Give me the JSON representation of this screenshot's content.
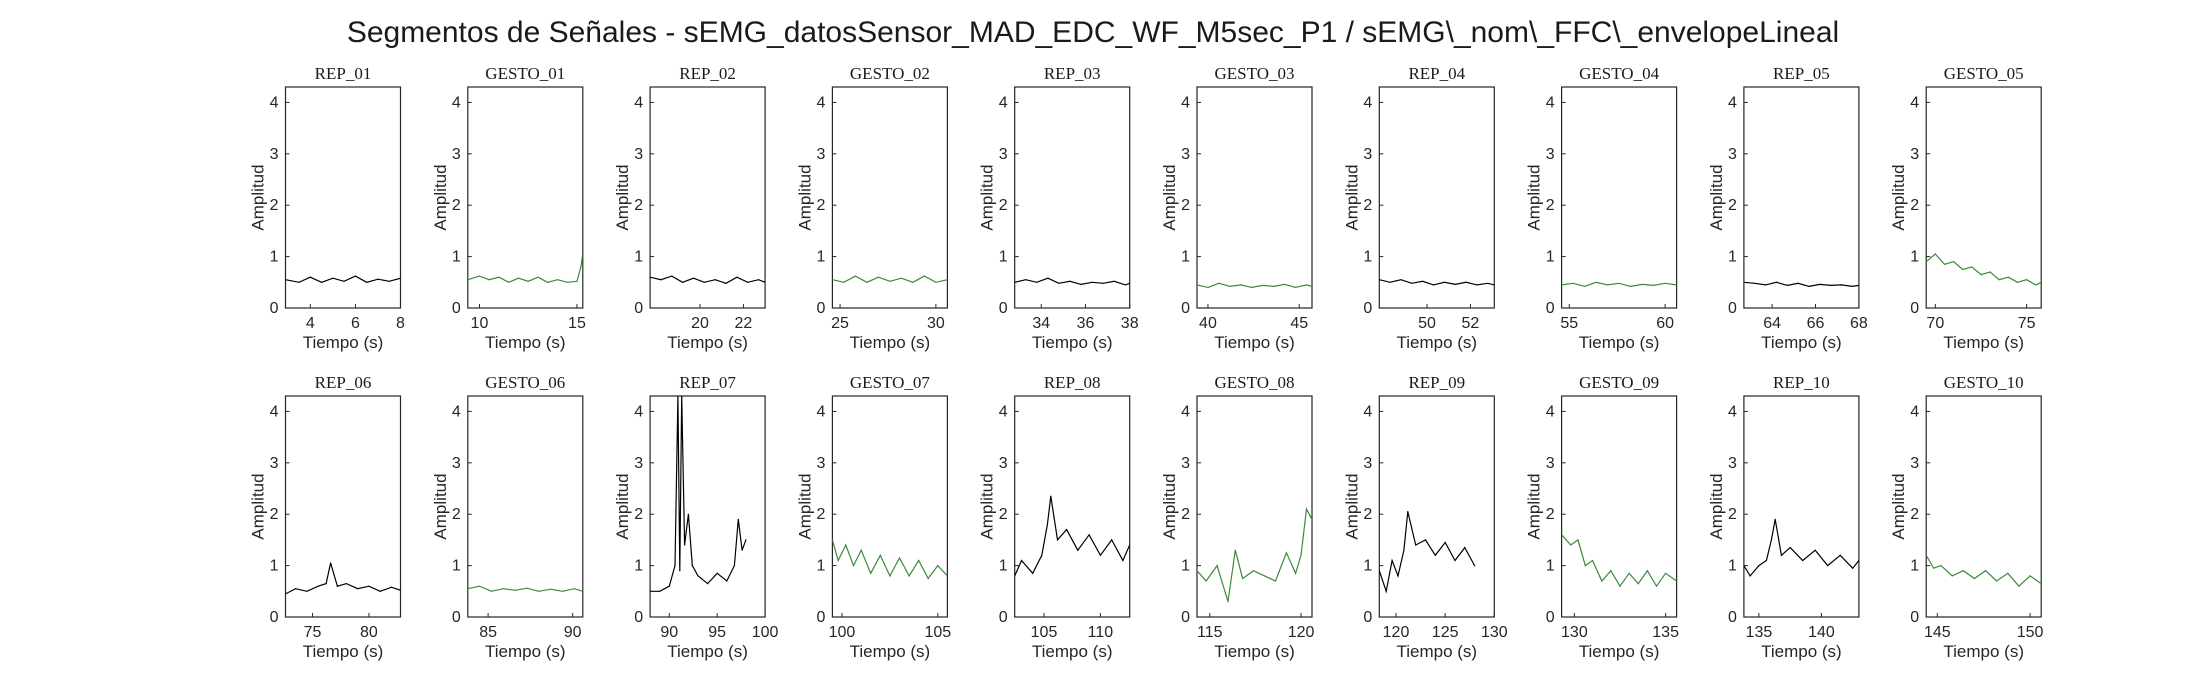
{
  "figure": {
    "title": "Segmentos de Señales - sEMG_datosSensor_MAD_EDC_WF_M5sec_P1 / sEMG\\_nom\\_FFC\\_envelopeLineal"
  },
  "colors": {
    "rep": "#000000",
    "gesto": "#3a8a3a"
  },
  "chart_data": [
    {
      "type": "line",
      "title": "REP_01",
      "xlabel": "Tiempo (s)",
      "ylabel": "Amplitud",
      "xlim": [
        2.9,
        8
      ],
      "ylim": [
        0,
        4.3
      ],
      "xticks": [
        4,
        6,
        8
      ],
      "yticks": [
        0,
        1,
        2,
        3,
        4
      ],
      "color": "rep",
      "x": [
        2.9,
        3.5,
        4.0,
        4.5,
        5.0,
        5.5,
        6.0,
        6.5,
        7.0,
        7.5,
        8.0
      ],
      "y": [
        0.55,
        0.5,
        0.6,
        0.5,
        0.58,
        0.52,
        0.62,
        0.5,
        0.56,
        0.52,
        0.58
      ]
    },
    {
      "type": "line",
      "title": "GESTO_01",
      "xlabel": "Tiempo (s)",
      "ylabel": "Amplitud",
      "xlim": [
        9.4,
        15.3
      ],
      "ylim": [
        0,
        4.3
      ],
      "xticks": [
        10,
        15
      ],
      "yticks": [
        0,
        1,
        2,
        3,
        4
      ],
      "color": "gesto",
      "x": [
        9.4,
        10,
        10.5,
        11,
        11.5,
        12,
        12.5,
        13,
        13.5,
        14,
        14.5,
        15,
        15.2,
        15.3
      ],
      "y": [
        0.55,
        0.62,
        0.55,
        0.6,
        0.5,
        0.58,
        0.52,
        0.6,
        0.5,
        0.55,
        0.5,
        0.52,
        0.8,
        1.05
      ]
    },
    {
      "type": "line",
      "title": "REP_02",
      "xlabel": "Tiempo (s)",
      "ylabel": "Amplitud",
      "xlim": [
        17.7,
        23
      ],
      "ylim": [
        0,
        4.3
      ],
      "xticks": [
        20,
        22
      ],
      "yticks": [
        0,
        1,
        2,
        3,
        4
      ],
      "color": "rep",
      "x": [
        17.7,
        18.2,
        18.7,
        19.2,
        19.7,
        20.2,
        20.7,
        21.2,
        21.7,
        22.2,
        22.7,
        23
      ],
      "y": [
        0.6,
        0.55,
        0.62,
        0.5,
        0.58,
        0.5,
        0.55,
        0.48,
        0.6,
        0.5,
        0.55,
        0.5
      ]
    },
    {
      "type": "line",
      "title": "GESTO_02",
      "xlabel": "Tiempo (s)",
      "ylabel": "Amplitud",
      "xlim": [
        24.6,
        30.6
      ],
      "ylim": [
        0,
        4.3
      ],
      "xticks": [
        25,
        30
      ],
      "yticks": [
        0,
        1,
        2,
        3,
        4
      ],
      "color": "gesto",
      "x": [
        24.6,
        25.2,
        25.8,
        26.4,
        27,
        27.6,
        28.2,
        28.8,
        29.4,
        30,
        30.6
      ],
      "y": [
        0.55,
        0.5,
        0.62,
        0.5,
        0.6,
        0.52,
        0.58,
        0.5,
        0.62,
        0.5,
        0.55
      ]
    },
    {
      "type": "line",
      "title": "REP_03",
      "xlabel": "Tiempo (s)",
      "ylabel": "Amplitud",
      "xlim": [
        32.8,
        38
      ],
      "ylim": [
        0,
        4.3
      ],
      "xticks": [
        34,
        36,
        38
      ],
      "yticks": [
        0,
        1,
        2,
        3,
        4
      ],
      "color": "rep",
      "x": [
        32.8,
        33.3,
        33.8,
        34.3,
        34.8,
        35.3,
        35.8,
        36.3,
        36.8,
        37.3,
        37.8,
        38
      ],
      "y": [
        0.5,
        0.55,
        0.5,
        0.58,
        0.48,
        0.52,
        0.46,
        0.5,
        0.48,
        0.52,
        0.45,
        0.48
      ]
    },
    {
      "type": "line",
      "title": "GESTO_03",
      "xlabel": "Tiempo (s)",
      "ylabel": "Amplitud",
      "xlim": [
        39.4,
        45.7
      ],
      "ylim": [
        0,
        4.3
      ],
      "xticks": [
        40,
        45
      ],
      "yticks": [
        0,
        1,
        2,
        3,
        4
      ],
      "color": "gesto",
      "x": [
        39.4,
        40,
        40.6,
        41.2,
        41.8,
        42.4,
        43,
        43.6,
        44.2,
        44.8,
        45.4,
        45.7
      ],
      "y": [
        0.45,
        0.4,
        0.48,
        0.42,
        0.45,
        0.4,
        0.44,
        0.42,
        0.46,
        0.4,
        0.45,
        0.42
      ]
    },
    {
      "type": "line",
      "title": "REP_04",
      "xlabel": "Tiempo (s)",
      "ylabel": "Amplitud",
      "xlim": [
        47.8,
        53.1
      ],
      "ylim": [
        0,
        4.3
      ],
      "xticks": [
        50,
        52
      ],
      "yticks": [
        0,
        1,
        2,
        3,
        4
      ],
      "color": "rep",
      "x": [
        47.8,
        48.3,
        48.8,
        49.3,
        49.8,
        50.3,
        50.8,
        51.3,
        51.8,
        52.3,
        52.8,
        53.1
      ],
      "y": [
        0.55,
        0.5,
        0.55,
        0.48,
        0.52,
        0.45,
        0.5,
        0.46,
        0.5,
        0.45,
        0.48,
        0.45
      ]
    },
    {
      "type": "line",
      "title": "GESTO_04",
      "xlabel": "Tiempo (s)",
      "ylabel": "Amplitud",
      "xlim": [
        54.6,
        60.6
      ],
      "ylim": [
        0,
        4.3
      ],
      "xticks": [
        55,
        60
      ],
      "yticks": [
        0,
        1,
        2,
        3,
        4
      ],
      "color": "gesto",
      "x": [
        54.6,
        55.2,
        55.8,
        56.4,
        57,
        57.6,
        58.2,
        58.8,
        59.4,
        60,
        60.6
      ],
      "y": [
        0.45,
        0.48,
        0.42,
        0.5,
        0.45,
        0.48,
        0.42,
        0.46,
        0.44,
        0.48,
        0.45
      ]
    },
    {
      "type": "line",
      "title": "REP_05",
      "xlabel": "Tiempo (s)",
      "ylabel": "Amplitud",
      "xlim": [
        62.7,
        68
      ],
      "ylim": [
        0,
        4.3
      ],
      "xticks": [
        64,
        66,
        68
      ],
      "yticks": [
        0,
        1,
        2,
        3,
        4
      ],
      "color": "rep",
      "x": [
        62.7,
        63.2,
        63.7,
        64.2,
        64.7,
        65.2,
        65.7,
        66.2,
        66.7,
        67.2,
        67.7,
        68
      ],
      "y": [
        0.5,
        0.48,
        0.45,
        0.5,
        0.44,
        0.48,
        0.42,
        0.46,
        0.44,
        0.45,
        0.42,
        0.44
      ]
    },
    {
      "type": "line",
      "title": "GESTO_05",
      "xlabel": "Tiempo (s)",
      "ylabel": "Amplitud",
      "xlim": [
        69.5,
        75.8
      ],
      "ylim": [
        0,
        4.3
      ],
      "xticks": [
        70,
        75
      ],
      "yticks": [
        0,
        1,
        2,
        3,
        4
      ],
      "color": "gesto",
      "x": [
        69.5,
        70,
        70.5,
        71,
        71.5,
        72,
        72.5,
        73,
        73.5,
        74,
        74.5,
        75,
        75.5,
        75.8
      ],
      "y": [
        0.9,
        1.05,
        0.85,
        0.9,
        0.75,
        0.8,
        0.65,
        0.7,
        0.55,
        0.6,
        0.5,
        0.55,
        0.45,
        0.5
      ]
    },
    {
      "type": "line",
      "title": "REP_06",
      "xlabel": "Tiempo (s)",
      "ylabel": "Amplitud",
      "xlim": [
        72.6,
        82.8
      ],
      "ylim": [
        0,
        4.3
      ],
      "xticks": [
        75,
        80
      ],
      "yticks": [
        0,
        1,
        2,
        3,
        4
      ],
      "color": "rep",
      "x": [
        72.6,
        73.5,
        74.5,
        75.5,
        76.2,
        76.6,
        77.2,
        78,
        79,
        80,
        81,
        82,
        82.8
      ],
      "y": [
        0.45,
        0.55,
        0.5,
        0.6,
        0.65,
        1.05,
        0.6,
        0.65,
        0.55,
        0.6,
        0.5,
        0.58,
        0.52
      ]
    },
    {
      "type": "line",
      "title": "GESTO_06",
      "xlabel": "Tiempo (s)",
      "ylabel": "Amplitud",
      "xlim": [
        83.8,
        90.6
      ],
      "ylim": [
        0,
        4.3
      ],
      "xticks": [
        85,
        90
      ],
      "yticks": [
        0,
        1,
        2,
        3,
        4
      ],
      "color": "gesto",
      "x": [
        83.8,
        84.5,
        85.2,
        85.9,
        86.6,
        87.3,
        88,
        88.7,
        89.4,
        90.1,
        90.6
      ],
      "y": [
        0.55,
        0.6,
        0.5,
        0.55,
        0.52,
        0.56,
        0.5,
        0.54,
        0.5,
        0.55,
        0.5
      ]
    },
    {
      "type": "line",
      "title": "REP_07",
      "xlabel": "Tiempo (s)",
      "ylabel": "Amplitud",
      "xlim": [
        88,
        100
      ],
      "ylim": [
        0,
        4.3
      ],
      "xticks": [
        90,
        95,
        100
      ],
      "yticks": [
        0,
        1,
        2,
        3,
        4
      ],
      "color": "rep",
      "x": [
        88,
        89,
        90,
        90.6,
        90.9,
        91.1,
        91.3,
        91.6,
        92,
        92.4,
        93,
        94,
        95,
        96,
        96.8,
        97.2,
        97.6,
        98
      ],
      "y": [
        0.5,
        0.5,
        0.6,
        1.0,
        4.3,
        0.9,
        4.3,
        1.4,
        2.0,
        1.0,
        0.8,
        0.65,
        0.85,
        0.7,
        1.0,
        1.9,
        1.3,
        1.5
      ]
    },
    {
      "type": "line",
      "title": "GESTO_07",
      "xlabel": "Tiempo (s)",
      "ylabel": "Amplitud",
      "xlim": [
        99.5,
        105.5
      ],
      "ylim": [
        0,
        4.3
      ],
      "xticks": [
        100,
        105
      ],
      "yticks": [
        0,
        1,
        2,
        3,
        4
      ],
      "color": "gesto",
      "x": [
        99.5,
        99.8,
        100.2,
        100.6,
        101,
        101.5,
        102,
        102.5,
        103,
        103.5,
        104,
        104.5,
        105,
        105.5
      ],
      "y": [
        1.5,
        1.1,
        1.4,
        1.0,
        1.3,
        0.85,
        1.2,
        0.8,
        1.15,
        0.8,
        1.1,
        0.75,
        1.0,
        0.8
      ]
    },
    {
      "type": "line",
      "title": "REP_08",
      "xlabel": "Tiempo (s)",
      "ylabel": "Amplitud",
      "xlim": [
        102.4,
        112.6
      ],
      "ylim": [
        0,
        4.3
      ],
      "xticks": [
        105,
        110
      ],
      "yticks": [
        0,
        1,
        2,
        3,
        4
      ],
      "color": "rep",
      "x": [
        102.4,
        103,
        104,
        104.8,
        105.3,
        105.6,
        106.2,
        107,
        108,
        109,
        110,
        111,
        112,
        112.6
      ],
      "y": [
        0.8,
        1.1,
        0.85,
        1.2,
        1.8,
        2.35,
        1.5,
        1.7,
        1.3,
        1.6,
        1.2,
        1.5,
        1.1,
        1.4
      ]
    },
    {
      "type": "line",
      "title": "GESTO_08",
      "xlabel": "Tiempo (s)",
      "ylabel": "Amplitud",
      "xlim": [
        114.3,
        120.6
      ],
      "ylim": [
        0,
        4.3
      ],
      "xticks": [
        115,
        120
      ],
      "yticks": [
        0,
        1,
        2,
        3,
        4
      ],
      "color": "gesto",
      "x": [
        114.3,
        114.8,
        115.4,
        116,
        116.4,
        116.8,
        117.4,
        118,
        118.6,
        119.2,
        119.7,
        120,
        120.3,
        120.6
      ],
      "y": [
        0.9,
        0.7,
        1.0,
        0.3,
        1.3,
        0.75,
        0.9,
        0.8,
        0.7,
        1.25,
        0.85,
        1.2,
        2.1,
        1.9
      ]
    },
    {
      "type": "line",
      "title": "REP_09",
      "xlabel": "Tiempo (s)",
      "ylabel": "Amplitud",
      "xlim": [
        118.3,
        130
      ],
      "ylim": [
        0,
        4.3
      ],
      "xticks": [
        120,
        125,
        130
      ],
      "yticks": [
        0,
        1,
        2,
        3,
        4
      ],
      "color": "rep",
      "x": [
        118.3,
        119,
        119.6,
        120.2,
        120.8,
        121.2,
        122,
        123,
        124,
        125,
        126,
        127,
        128
      ],
      "y": [
        0.9,
        0.5,
        1.1,
        0.8,
        1.3,
        2.05,
        1.4,
        1.5,
        1.2,
        1.45,
        1.1,
        1.35,
        1.0
      ]
    },
    {
      "type": "line",
      "title": "GESTO_09",
      "xlabel": "Tiempo (s)",
      "ylabel": "Amplitud",
      "xlim": [
        129.3,
        135.6
      ],
      "ylim": [
        0,
        4.3
      ],
      "xticks": [
        130,
        135
      ],
      "yticks": [
        0,
        1,
        2,
        3,
        4
      ],
      "color": "gesto",
      "x": [
        129.3,
        129.8,
        130.2,
        130.6,
        131,
        131.5,
        132,
        132.5,
        133,
        133.5,
        134,
        134.5,
        135,
        135.6
      ],
      "y": [
        1.6,
        1.4,
        1.5,
        1.0,
        1.1,
        0.7,
        0.9,
        0.6,
        0.85,
        0.65,
        0.9,
        0.6,
        0.85,
        0.7
      ]
    },
    {
      "type": "line",
      "title": "REP_10",
      "xlabel": "Tiempo (s)",
      "ylabel": "Amplitud",
      "xlim": [
        133.8,
        143
      ],
      "ylim": [
        0,
        4.3
      ],
      "xticks": [
        135,
        140
      ],
      "yticks": [
        0,
        1,
        2,
        3,
        4
      ],
      "color": "rep",
      "x": [
        133.8,
        134.3,
        135,
        135.6,
        136,
        136.3,
        136.8,
        137.5,
        138.5,
        139.5,
        140.5,
        141.5,
        142.5,
        143
      ],
      "y": [
        1.0,
        0.8,
        1.0,
        1.1,
        1.5,
        1.9,
        1.2,
        1.35,
        1.1,
        1.3,
        1.0,
        1.2,
        0.95,
        1.1
      ]
    },
    {
      "type": "line",
      "title": "GESTO_10",
      "xlabel": "Tiempo (s)",
      "ylabel": "Amplitud",
      "xlim": [
        144.4,
        150.6
      ],
      "ylim": [
        0,
        4.3
      ],
      "xticks": [
        145,
        150
      ],
      "yticks": [
        0,
        1,
        2,
        3,
        4
      ],
      "color": "gesto",
      "x": [
        144.4,
        144.8,
        145.2,
        145.8,
        146.4,
        147,
        147.6,
        148.2,
        148.8,
        149.4,
        150,
        150.6
      ],
      "y": [
        1.2,
        0.95,
        1.0,
        0.8,
        0.9,
        0.75,
        0.9,
        0.7,
        0.85,
        0.6,
        0.8,
        0.65
      ]
    }
  ]
}
